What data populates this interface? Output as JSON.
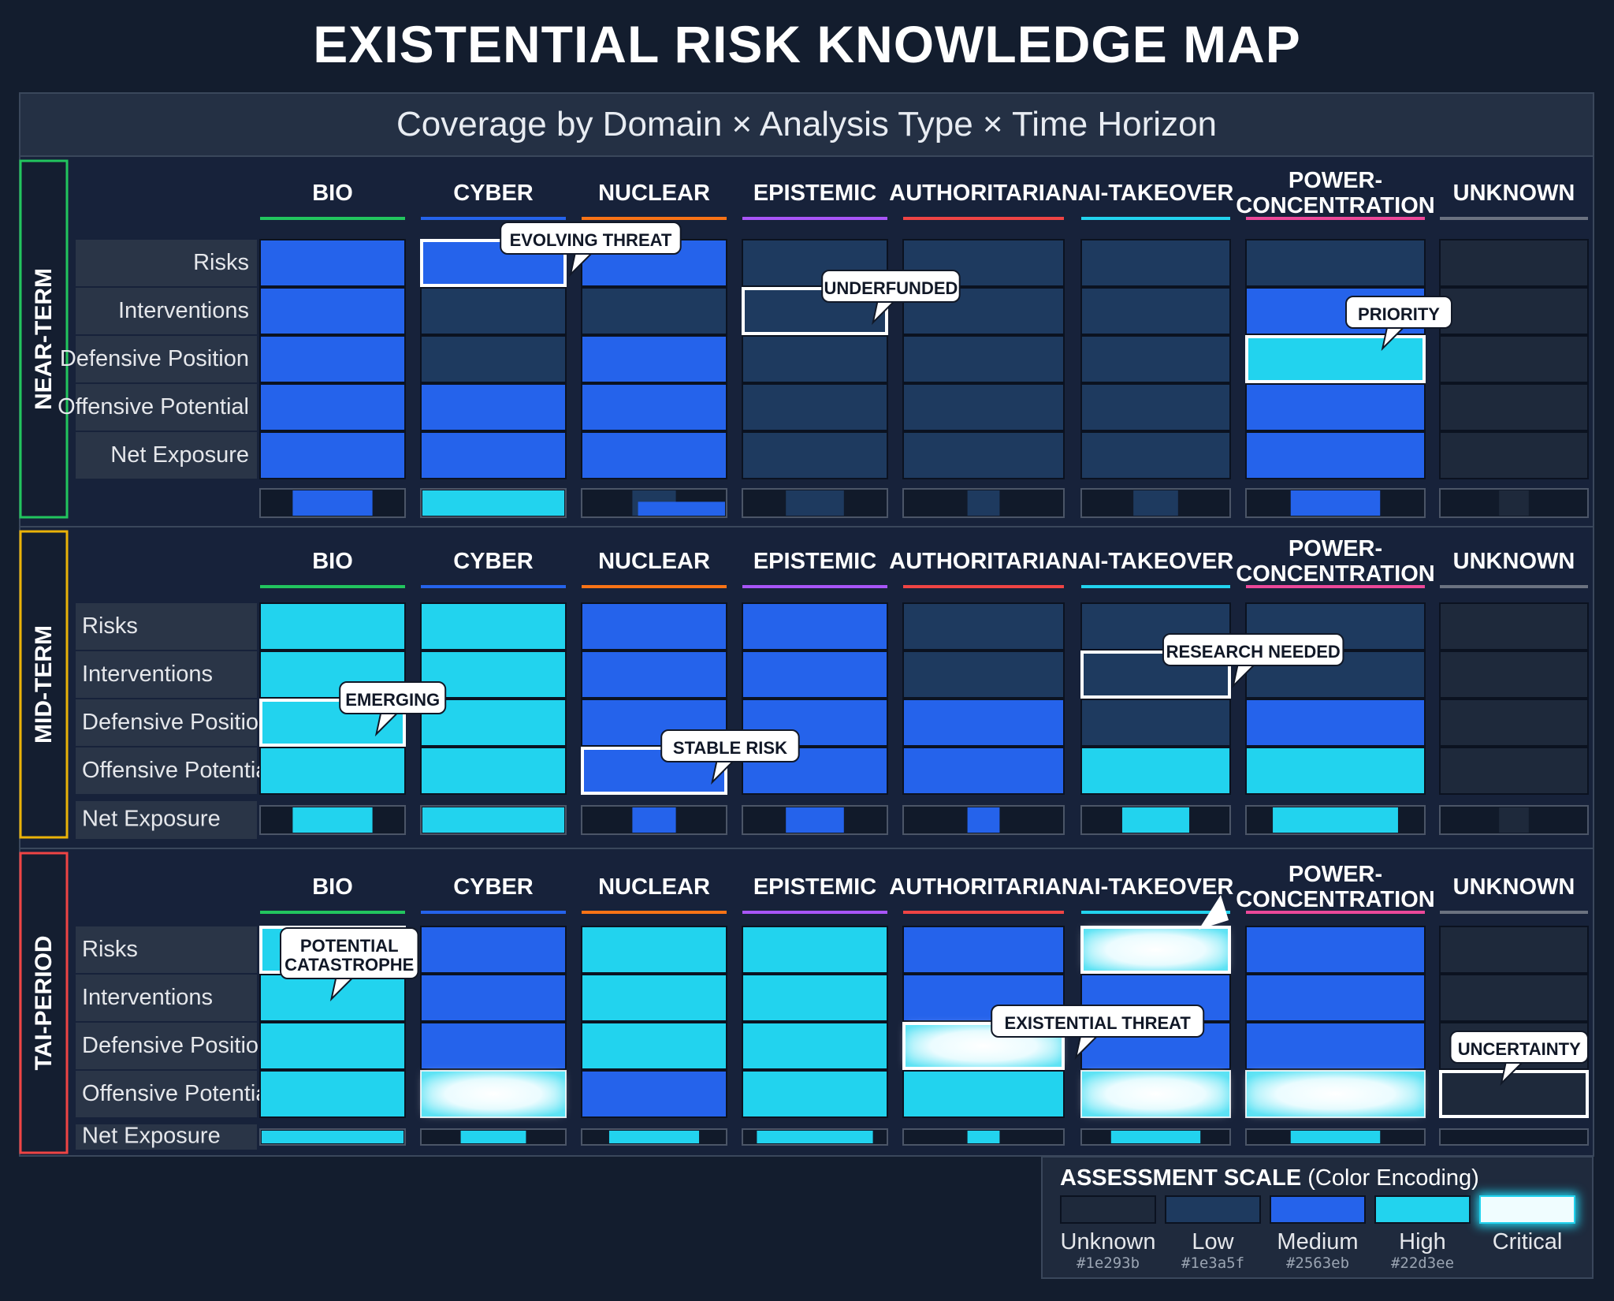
{
  "title": "EXISTENTIAL RISK KNOWLEDGE MAP",
  "subtitle": "Coverage by Domain × Analysis Type × Time Horizon",
  "colors": {
    "unknown": "#1e293b",
    "low": "#1e3a5f",
    "medium": "#2563eb",
    "high": "#22d3ee",
    "critical": "#f0fdff",
    "near_term_border": "#22c55e",
    "mid_term_border": "#eab308",
    "tai_border": "#ef4444"
  },
  "chart_data": {
    "type": "heatmap",
    "columns": [
      {
        "label": "BIO",
        "color": "#22c55e"
      },
      {
        "label": "CYBER",
        "color": "#2563eb"
      },
      {
        "label": "NUCLEAR",
        "color": "#f97316"
      },
      {
        "label": "EPISTEMIC",
        "color": "#a855f7"
      },
      {
        "label": "AUTHORITARIAN",
        "color": "#ef4444"
      },
      {
        "label": "AI-TAKEOVER",
        "color": "#22d3ee"
      },
      {
        "label": "POWER-\nCONCENTRATION",
        "color": "#ec4899"
      },
      {
        "label": "UNKNOWN",
        "color": "#6b7280"
      }
    ],
    "rows": [
      "Risks",
      "Interventions",
      "Defensive Position",
      "Offensive Potential",
      "Net Exposure"
    ],
    "scale": [
      "Unknown",
      "Low",
      "Medium",
      "High",
      "Critical"
    ],
    "sections": [
      {
        "label": "NEAR-TERM",
        "grid": [
          [
            "Medium",
            "Medium",
            "Medium",
            "Low",
            "Low",
            "Low",
            "Low",
            "Unknown"
          ],
          [
            "Medium",
            "Low",
            "Low",
            "Low",
            "Low",
            "Low",
            "Medium",
            "Unknown"
          ],
          [
            "Medium",
            "Low",
            "Medium",
            "Low",
            "Low",
            "Low",
            "High",
            "Unknown"
          ],
          [
            "Medium",
            "Medium",
            "Medium",
            "Low",
            "Low",
            "Low",
            "Medium",
            "Unknown"
          ],
          [
            "Medium",
            "Medium",
            "Medium",
            "Low",
            "Low",
            "Low",
            "Medium",
            "Unknown"
          ]
        ],
        "net_exposure": [
          [
            {
              "w": 0.55,
              "level": "Medium"
            }
          ],
          [
            {
              "w": 1.0,
              "level": "High"
            }
          ],
          [
            {
              "w": 0.3,
              "level": "Low"
            },
            {
              "w": 0.6,
              "level": "Medium"
            }
          ],
          [
            {
              "w": 0.4,
              "level": "Low"
            }
          ],
          [
            {
              "w": 0.2,
              "level": "Low"
            }
          ],
          [
            {
              "w": 0.3,
              "level": "Low"
            }
          ],
          [
            {
              "w": 0.5,
              "level": "Medium"
            }
          ],
          [
            {
              "w": 0.2,
              "level": "Unknown"
            }
          ]
        ],
        "callouts": [
          {
            "text": "EVOLVING THREAT",
            "col": 1,
            "row": 0
          },
          {
            "text": "UNDERFUNDED",
            "col": 3,
            "row": 1
          },
          {
            "text": "PRIORITY",
            "col": 6,
            "row": 2
          }
        ]
      },
      {
        "label": "MID-TERM",
        "grid": [
          [
            "High",
            "High",
            "Medium",
            "Medium",
            "Low",
            "Low",
            "Low",
            "Unknown"
          ],
          [
            "High",
            "High",
            "Medium",
            "Medium",
            "Low",
            "Low",
            "Low",
            "Unknown"
          ],
          [
            "High",
            "High",
            "Medium",
            "Medium",
            "Medium",
            "Low",
            "Medium",
            "Unknown"
          ],
          [
            "High",
            "High",
            "Medium",
            "Medium",
            "Medium",
            "High",
            "High",
            "Unknown"
          ],
          [
            "High",
            "High",
            "Medium",
            "Medium",
            "Medium",
            "High",
            "High",
            "Unknown"
          ]
        ],
        "net_exposure": [
          [
            {
              "w": 0.55,
              "level": "High"
            }
          ],
          [
            {
              "w": 1.0,
              "level": "High"
            }
          ],
          [
            {
              "w": 0.3,
              "level": "Medium"
            }
          ],
          [
            {
              "w": 0.4,
              "level": "Medium"
            }
          ],
          [
            {
              "w": 0.2,
              "level": "Medium"
            }
          ],
          [
            {
              "w": 0.45,
              "level": "High"
            }
          ],
          [
            {
              "w": 0.7,
              "level": "High"
            }
          ],
          [
            {
              "w": 0.2,
              "level": "Unknown"
            }
          ]
        ],
        "callouts": [
          {
            "text": "EMERGING",
            "col": 0,
            "row": 2
          },
          {
            "text": "STABLE RISK",
            "col": 2,
            "row": 3
          },
          {
            "text": "RESEARCH NEEDED",
            "col": 5,
            "row": 1
          }
        ]
      },
      {
        "label": "TAI-PERIOD",
        "grid": [
          [
            "High",
            "Medium",
            "High",
            "High",
            "Medium",
            "Critical",
            "Medium",
            "Unknown"
          ],
          [
            "High",
            "Medium",
            "High",
            "High",
            "Medium",
            "Medium",
            "Medium",
            "Unknown"
          ],
          [
            "High",
            "Medium",
            "High",
            "High",
            "Critical",
            "Medium",
            "Medium",
            "Unknown"
          ],
          [
            "High",
            "Critical",
            "Medium",
            "High",
            "High",
            "Critical",
            "Critical",
            "Unknown"
          ],
          [
            "High",
            "High",
            "High",
            "High",
            "High",
            "High",
            "High",
            "Unknown"
          ]
        ],
        "net_exposure": [
          [
            {
              "w": 1.0,
              "level": "High"
            }
          ],
          [
            {
              "w": 0.45,
              "level": "High"
            }
          ],
          [
            {
              "w": 0.62,
              "level": "High"
            }
          ],
          [
            {
              "w": 0.8,
              "level": "High"
            }
          ],
          [
            {
              "w": 0.2,
              "level": "High"
            }
          ],
          [
            {
              "w": 0.6,
              "level": "High"
            }
          ],
          [
            {
              "w": 0.5,
              "level": "High"
            }
          ],
          [
            {
              "w": 0.0,
              "level": "Unknown"
            }
          ]
        ],
        "callouts": [
          {
            "text": "POTENTIAL\nCATASTROPHE",
            "col": 0,
            "row": 0
          },
          {
            "text": "EXISTENTIAL THREAT",
            "col": 4,
            "row": 2
          },
          {
            "text": "",
            "col": 5,
            "row": 0
          },
          {
            "text": "UNCERTAINTY",
            "col": 7,
            "row": 3
          }
        ]
      }
    ]
  },
  "legend": {
    "title_bold": "ASSESSMENT SCALE",
    "title_rest": " (Color Encoding)",
    "items": [
      {
        "name": "Unknown",
        "hex": "#1e293b"
      },
      {
        "name": "Low",
        "hex": "#1e3a5f"
      },
      {
        "name": "Medium",
        "hex": "#2563eb"
      },
      {
        "name": "High",
        "hex": "#22d3ee"
      },
      {
        "name": "Critical",
        "hex": ""
      }
    ]
  }
}
